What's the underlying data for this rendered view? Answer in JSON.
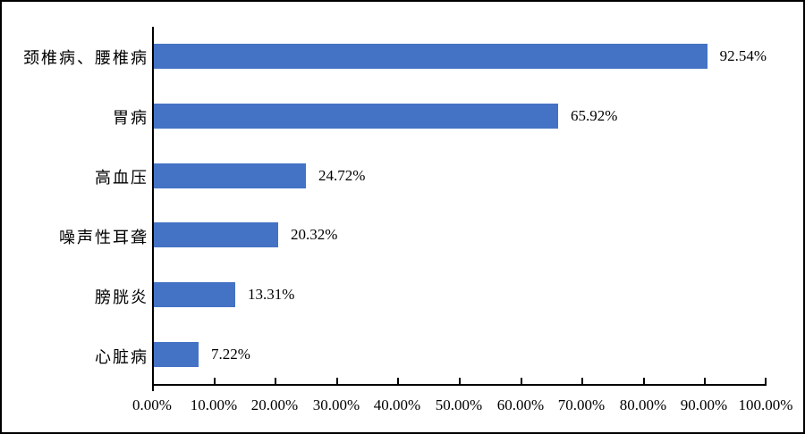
{
  "chart_data": {
    "type": "bar",
    "orientation": "horizontal",
    "title": "",
    "xlabel": "",
    "ylabel": "",
    "categories": [
      "颈椎病、腰椎病",
      "胃病",
      "高血压",
      "噪声性耳聋",
      "膀胱炎",
      "心脏病"
    ],
    "values": [
      92.54,
      65.92,
      24.72,
      20.32,
      13.31,
      7.22
    ],
    "value_labels": [
      "92.54%",
      "65.92%",
      "24.72%",
      "20.32%",
      "13.31%",
      "7.22%"
    ],
    "x_tick_labels": [
      "0.00%",
      "10.00%",
      "20.00%",
      "30.00%",
      "40.00%",
      "50.00%",
      "60.00%",
      "70.00%",
      "80.00%",
      "90.00%",
      "100.00%"
    ],
    "xlim": [
      0,
      100
    ],
    "grid": false,
    "legend": false,
    "data_labels_position": "outside-end",
    "bar_color": "#4472C4",
    "axis_color": "#000000",
    "text_color": "#000000",
    "background_color": "#ffffff",
    "border_color": "#000000"
  }
}
